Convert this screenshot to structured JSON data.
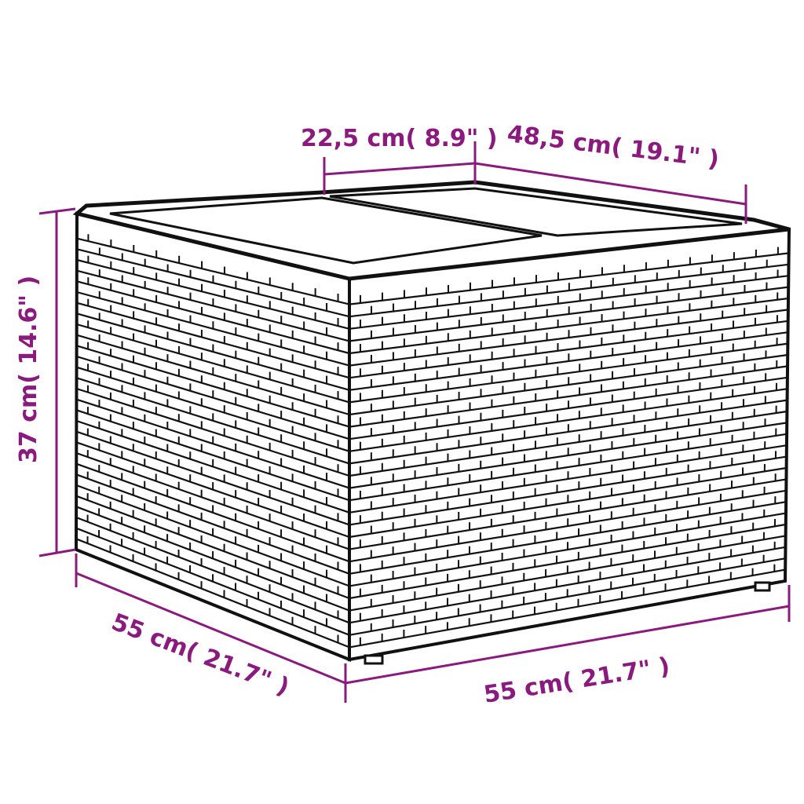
{
  "colors": {
    "dimension": "#8b1a7e",
    "outline": "#111111"
  },
  "product": {
    "name": "wicker storage table with glass top"
  },
  "dimensions": {
    "top_panel_width": "22,5 cm( 8.9\"  )",
    "depth_top": "48,5 cm( 19.1\"  )",
    "height": "37 cm( 14.6\"  )",
    "depth": "55 cm( 21.7\"  )",
    "width": "55 cm( 21.7\"  )"
  }
}
